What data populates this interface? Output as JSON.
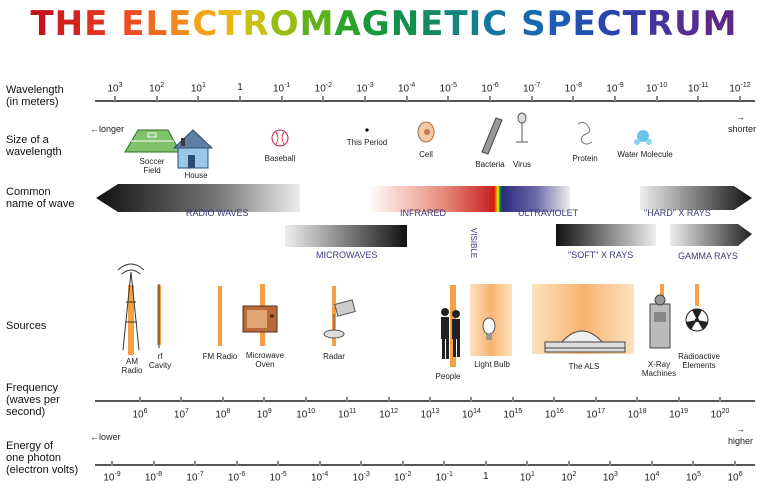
{
  "title": {
    "letters": [
      {
        "t": "T",
        "c": "#c4131a"
      },
      {
        "t": "H",
        "c": "#d1221d"
      },
      {
        "t": "E",
        "c": "#e0321f"
      },
      {
        "t": " ",
        "c": "#000"
      },
      {
        "t": "E",
        "c": "#ee4d1f"
      },
      {
        "t": "L",
        "c": "#f0691c"
      },
      {
        "t": "E",
        "c": "#f3891a"
      },
      {
        "t": "C",
        "c": "#f5a317"
      },
      {
        "t": "T",
        "c": "#e8b713"
      },
      {
        "t": "R",
        "c": "#c8c111"
      },
      {
        "t": "O",
        "c": "#96bd13"
      },
      {
        "t": "M",
        "c": "#5fb21b"
      },
      {
        "t": "A",
        "c": "#2aa52a"
      },
      {
        "t": "G",
        "c": "#15993a"
      },
      {
        "t": "N",
        "c": "#13904d"
      },
      {
        "t": "E",
        "c": "#138a63"
      },
      {
        "t": "T",
        "c": "#13857a"
      },
      {
        "t": "I",
        "c": "#147f8f"
      },
      {
        "t": "C",
        "c": "#1477a1"
      },
      {
        "t": " ",
        "c": "#000"
      },
      {
        "t": "S",
        "c": "#176ab0"
      },
      {
        "t": "P",
        "c": "#1c5cb6"
      },
      {
        "t": "E",
        "c": "#2250b3"
      },
      {
        "t": "C",
        "c": "#2a45ad"
      },
      {
        "t": "T",
        "c": "#373ba5"
      },
      {
        "t": "R",
        "c": "#45349c"
      },
      {
        "t": "U",
        "c": "#522d92"
      },
      {
        "t": "M",
        "c": "#5e2788"
      }
    ]
  },
  "rows": {
    "wavelength": "Wavelength\n(in meters)",
    "size": "Size of a\nwavelength",
    "common": "Common\nname of wave",
    "sources": "Sources",
    "frequency": "Frequency\n(waves per\nsecond)",
    "energy": "Energy of\none photon\n(electron volts)"
  },
  "wavelength_ticks": [
    {
      "b": "10",
      "e": "3"
    },
    {
      "b": "10",
      "e": "2"
    },
    {
      "b": "10",
      "e": "1"
    },
    {
      "b": "1",
      "e": ""
    },
    {
      "b": "10",
      "e": "-1"
    },
    {
      "b": "10",
      "e": "-2"
    },
    {
      "b": "10",
      "e": "-3"
    },
    {
      "b": "10",
      "e": "-4"
    },
    {
      "b": "10",
      "e": "-5"
    },
    {
      "b": "10",
      "e": "-6"
    },
    {
      "b": "10",
      "e": "-7"
    },
    {
      "b": "10",
      "e": "-8"
    },
    {
      "b": "10",
      "e": "-9"
    },
    {
      "b": "10",
      "e": "-10"
    },
    {
      "b": "10",
      "e": "-11"
    },
    {
      "b": "10",
      "e": "-12"
    }
  ],
  "size_labels": {
    "longer": "longer",
    "shorter": "shorter",
    "soccer": "Soccer\nField",
    "house": "House",
    "baseball": "Baseball",
    "period": "This Period",
    "cell": "Cell",
    "bacteria": "Bacteria",
    "virus": "Virus",
    "protein": "Protein",
    "water": "Water Molecule"
  },
  "wave_names": {
    "radio": "RADIO WAVES",
    "infrared": "INFRARED",
    "visible": "VISIBLE",
    "ultraviolet": "ULTRAVIOLET",
    "hard_x": "\"HARD\" X RAYS",
    "microwaves": "MICROWAVES",
    "soft_x": "\"SOFT\" X RAYS",
    "gamma": "GAMMA RAYS"
  },
  "sources": {
    "am": "AM\nRadio",
    "rf": "rf\nCavity",
    "fm": "FM Radio",
    "microwave": "Microwave\nOven",
    "radar": "Radar",
    "people": "People",
    "bulb": "Light Bulb",
    "als": "The ALS",
    "xray": "X-Ray\nMachines",
    "radioactive": "Radioactive\nElements"
  },
  "frequency_ticks": [
    {
      "b": "10",
      "e": "6"
    },
    {
      "b": "10",
      "e": "7"
    },
    {
      "b": "10",
      "e": "8"
    },
    {
      "b": "10",
      "e": "9"
    },
    {
      "b": "10",
      "e": "10"
    },
    {
      "b": "10",
      "e": "11"
    },
    {
      "b": "10",
      "e": "12"
    },
    {
      "b": "10",
      "e": "13"
    },
    {
      "b": "10",
      "e": "14"
    },
    {
      "b": "10",
      "e": "15"
    },
    {
      "b": "10",
      "e": "16"
    },
    {
      "b": "10",
      "e": "17"
    },
    {
      "b": "10",
      "e": "18"
    },
    {
      "b": "10",
      "e": "19"
    },
    {
      "b": "10",
      "e": "20"
    }
  ],
  "energy_labels": {
    "lower": "lower",
    "higher": "higher"
  },
  "energy_ticks": [
    {
      "b": "10",
      "e": "-9"
    },
    {
      "b": "10",
      "e": "-8"
    },
    {
      "b": "10",
      "e": "-7"
    },
    {
      "b": "10",
      "e": "-6"
    },
    {
      "b": "10",
      "e": "-5"
    },
    {
      "b": "10",
      "e": "-4"
    },
    {
      "b": "10",
      "e": "-3"
    },
    {
      "b": "10",
      "e": "-2"
    },
    {
      "b": "10",
      "e": "-1"
    },
    {
      "b": "1",
      "e": ""
    },
    {
      "b": "10",
      "e": "1"
    },
    {
      "b": "10",
      "e": "2"
    },
    {
      "b": "10",
      "e": "3"
    },
    {
      "b": "10",
      "e": "4"
    },
    {
      "b": "10",
      "e": "5"
    },
    {
      "b": "10",
      "e": "6"
    }
  ]
}
